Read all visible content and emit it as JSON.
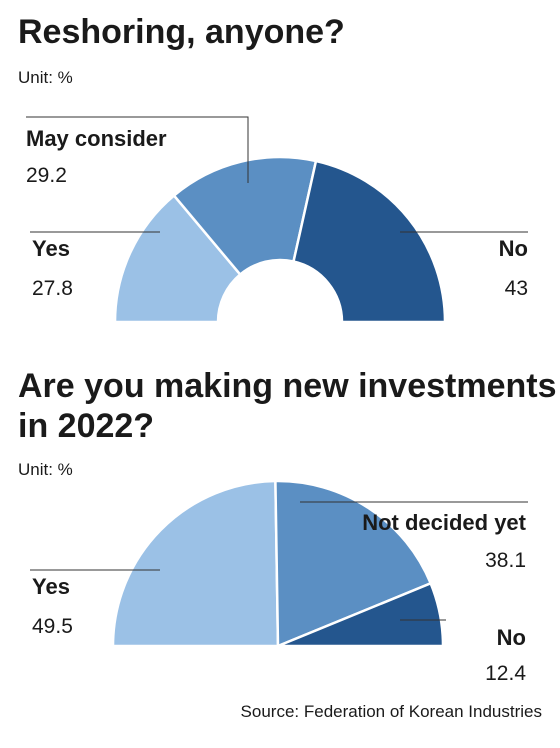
{
  "chart_data": [
    {
      "type": "pie",
      "variant": "half-donut",
      "title": "Reshoring, anyone?",
      "unit": "Unit: %",
      "slices": [
        {
          "label": "Yes",
          "value": 27.8,
          "color": "#9bc1e6"
        },
        {
          "label": "May consider",
          "value": 29.2,
          "color": "#5b8fc3"
        },
        {
          "label": "No",
          "value": 43,
          "color": "#24568e"
        }
      ]
    },
    {
      "type": "pie",
      "variant": "half-donut",
      "title": "Are you making new investments in 2022?",
      "unit": "Unit: %",
      "slices": [
        {
          "label": "Yes",
          "value": 49.5,
          "color": "#9bc1e6"
        },
        {
          "label": "Not decided yet",
          "value": 38.1,
          "color": "#5b8fc3"
        },
        {
          "label": "No",
          "value": 12.4,
          "color": "#24568e"
        }
      ]
    }
  ],
  "source": "Source: Federation of Korean Industries"
}
